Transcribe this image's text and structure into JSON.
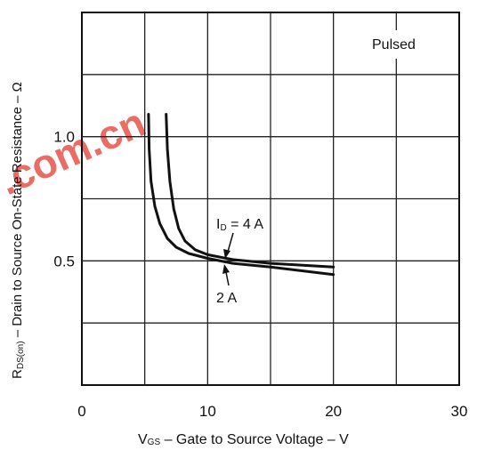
{
  "chart_data": {
    "type": "line",
    "title": "",
    "xlabel": {
      "main": "V",
      "sub": "GS",
      "rest": " – Gate to Source Voltage – V"
    },
    "ylabel": {
      "main": "R",
      "sub": "DS(on)",
      "rest": " – Drain to Source On-State Resistance – Ω"
    },
    "xlim": [
      0,
      30
    ],
    "ylim": [
      0,
      1.5
    ],
    "x_ticks": [
      0,
      10,
      20,
      30
    ],
    "x_tick_labels": [
      "0",
      "10",
      "20",
      "30"
    ],
    "y_ticks": [
      0.5,
      1.0
    ],
    "y_tick_labels": [
      "0.5",
      "1.0"
    ],
    "x_gridlines": [
      5,
      10,
      15,
      20,
      25
    ],
    "y_gridlines": [
      0.25,
      0.5,
      0.75,
      1.0,
      1.25
    ],
    "grid": true,
    "legend": "none",
    "series": [
      {
        "name": "4 A",
        "x": [
          6.7,
          6.8,
          7.0,
          7.3,
          7.7,
          8.2,
          9.0,
          10.0,
          12.0,
          15.0,
          20.0
        ],
        "y": [
          1.09,
          0.95,
          0.82,
          0.71,
          0.63,
          0.58,
          0.545,
          0.525,
          0.505,
          0.49,
          0.475
        ]
      },
      {
        "name": "2 A",
        "x": [
          5.3,
          5.35,
          5.5,
          5.8,
          6.2,
          6.8,
          7.5,
          8.5,
          10.0,
          12.0,
          15.0,
          20.0
        ],
        "y": [
          1.09,
          0.95,
          0.82,
          0.72,
          0.65,
          0.59,
          0.555,
          0.53,
          0.51,
          0.49,
          0.475,
          0.445
        ]
      }
    ],
    "annotations": {
      "box": "Pulsed",
      "id_label": {
        "main": "I",
        "sub": "D",
        "rest": " = 4 A"
      },
      "two_a_label": "2 A"
    }
  },
  "watermark": {
    "text": ".com.cn",
    "color": "#e8534a"
  }
}
